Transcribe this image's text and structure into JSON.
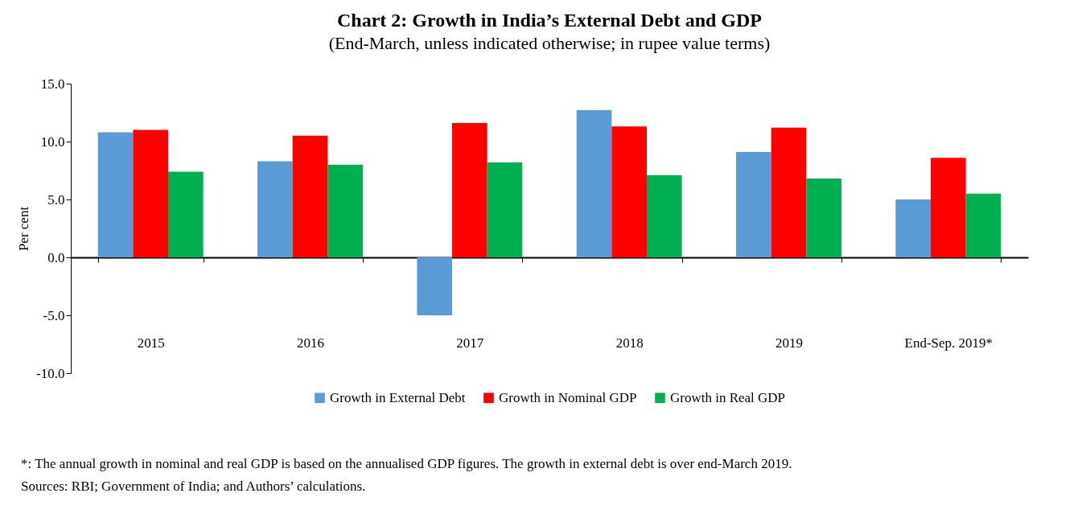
{
  "chart_data": {
    "type": "bar",
    "title": "Chart 2: Growth in India’s External Debt and GDP",
    "subtitle": "(End-March, unless indicated otherwise; in rupee value terms)",
    "ylabel": "Per cent",
    "categories": [
      "2015",
      "2016",
      "2017",
      "2018",
      "2019",
      "End-Sep. 2019*"
    ],
    "series": [
      {
        "name": "Growth in External Debt",
        "color": "#5b9bd5",
        "values": [
          10.8,
          8.3,
          -5.0,
          12.7,
          9.1,
          5.0
        ]
      },
      {
        "name": "Growth in Nominal GDP",
        "color": "#ff0000",
        "values": [
          11.0,
          10.5,
          11.6,
          11.3,
          11.2,
          8.6
        ]
      },
      {
        "name": "Growth in Real GDP",
        "color": "#00b050",
        "values": [
          7.4,
          8.0,
          8.2,
          7.1,
          6.8,
          5.5
        ]
      }
    ],
    "ylim": [
      -10,
      15
    ],
    "yticks": [
      {
        "value": -10,
        "label": "-10.0"
      },
      {
        "value": -5,
        "label": "-5.0"
      },
      {
        "value": 0,
        "label": "0.0"
      },
      {
        "value": 5,
        "label": "5.0"
      },
      {
        "value": 10,
        "label": "10.0"
      },
      {
        "value": 15,
        "label": "15.0"
      }
    ],
    "legend": "bottom",
    "annotations": [
      "*: The annual growth in nominal and real GDP is based on the annualised GDP figures. The growth in external debt is over end-March 2019.",
      "Sources: RBI; Government of India; and Authors’ calculations."
    ]
  }
}
